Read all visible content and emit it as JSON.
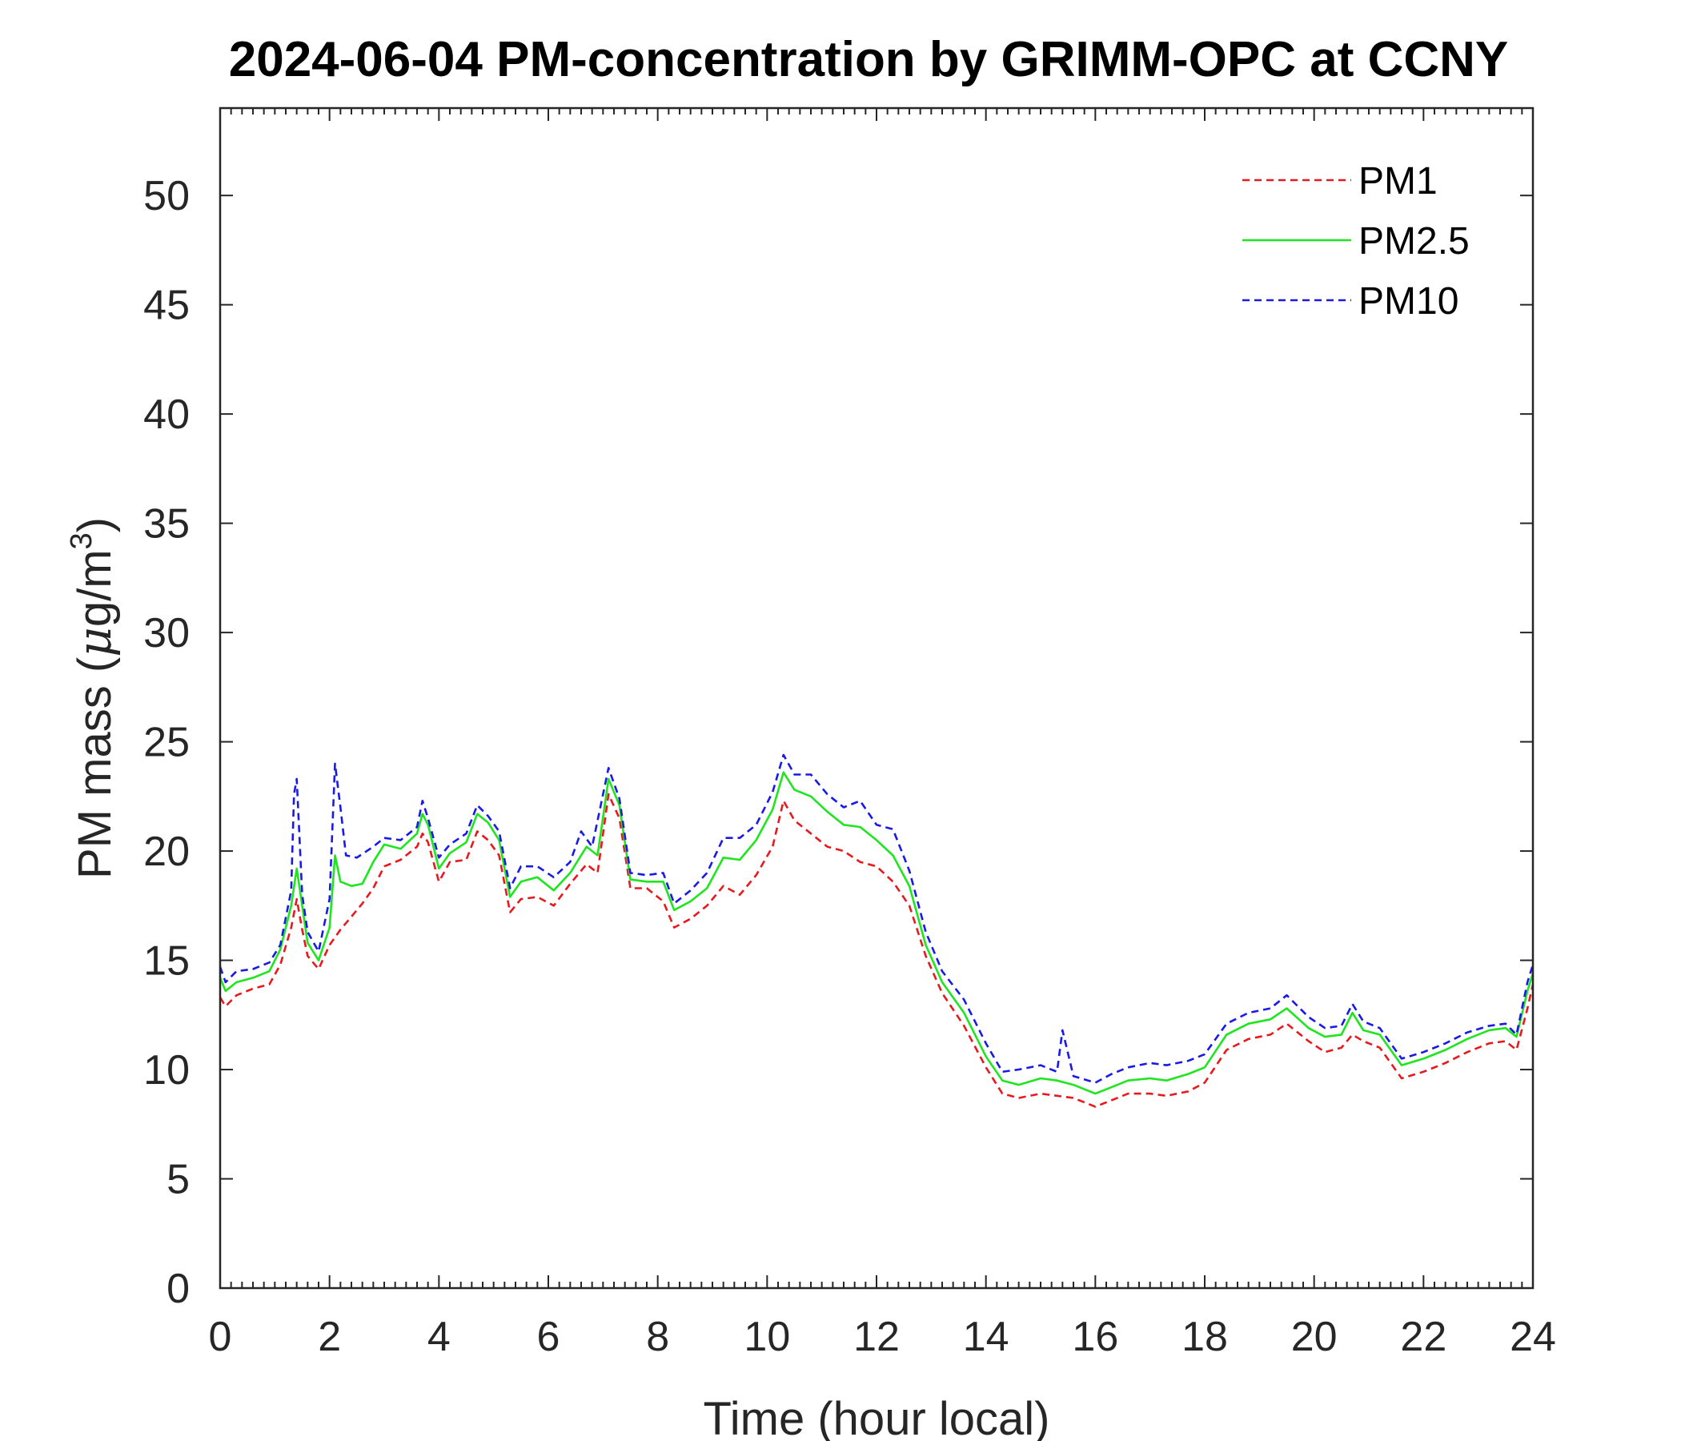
{
  "chart_data": {
    "type": "line",
    "title": "2024-06-04 PM-concentration by GRIMM-OPC at CCNY",
    "xlabel": "Time (hour local)",
    "ylabel_main": "PM mass (",
    "ylabel_mu": "μ",
    "ylabel_unit": "g/m",
    "ylabel_sup": "3",
    "ylabel_close": ")",
    "xlim": [
      0,
      24
    ],
    "ylim": [
      0,
      54
    ],
    "xticks": [
      0,
      2,
      4,
      6,
      8,
      10,
      12,
      14,
      16,
      18,
      20,
      22,
      24
    ],
    "yticks": [
      0,
      5,
      10,
      15,
      20,
      25,
      30,
      35,
      40,
      45,
      50
    ],
    "grid": false,
    "legend_position": "top-right",
    "series": [
      {
        "name": "PM1",
        "color": "#e8191e",
        "style": "dashed",
        "points": [
          [
            0,
            13.3
          ],
          [
            0.1,
            12.9
          ],
          [
            0.3,
            13.4
          ],
          [
            0.6,
            13.7
          ],
          [
            0.9,
            13.9
          ],
          [
            1.1,
            14.8
          ],
          [
            1.3,
            16.5
          ],
          [
            1.4,
            17.8
          ],
          [
            1.5,
            16.4
          ],
          [
            1.6,
            15.2
          ],
          [
            1.8,
            14.6
          ],
          [
            2.0,
            15.7
          ],
          [
            2.2,
            16.4
          ],
          [
            2.4,
            17.0
          ],
          [
            2.6,
            17.6
          ],
          [
            2.8,
            18.3
          ],
          [
            3.0,
            19.3
          ],
          [
            3.3,
            19.6
          ],
          [
            3.6,
            20.2
          ],
          [
            3.7,
            20.8
          ],
          [
            3.8,
            20.4
          ],
          [
            4.0,
            18.6
          ],
          [
            4.2,
            19.5
          ],
          [
            4.5,
            19.6
          ],
          [
            4.7,
            20.9
          ],
          [
            4.9,
            20.5
          ],
          [
            5.1,
            19.8
          ],
          [
            5.3,
            17.2
          ],
          [
            5.5,
            17.8
          ],
          [
            5.8,
            17.9
          ],
          [
            6.1,
            17.5
          ],
          [
            6.4,
            18.5
          ],
          [
            6.7,
            19.4
          ],
          [
            6.9,
            19.0
          ],
          [
            7.1,
            22.6
          ],
          [
            7.3,
            21.5
          ],
          [
            7.5,
            18.3
          ],
          [
            7.8,
            18.3
          ],
          [
            8.1,
            17.7
          ],
          [
            8.3,
            16.5
          ],
          [
            8.6,
            16.9
          ],
          [
            8.9,
            17.5
          ],
          [
            9.2,
            18.4
          ],
          [
            9.5,
            18.0
          ],
          [
            9.8,
            18.9
          ],
          [
            10.1,
            20.2
          ],
          [
            10.3,
            22.3
          ],
          [
            10.5,
            21.4
          ],
          [
            10.8,
            20.8
          ],
          [
            11.1,
            20.2
          ],
          [
            11.4,
            20.0
          ],
          [
            11.7,
            19.5
          ],
          [
            12.0,
            19.3
          ],
          [
            12.3,
            18.6
          ],
          [
            12.6,
            17.5
          ],
          [
            12.9,
            15.2
          ],
          [
            13.2,
            13.5
          ],
          [
            13.6,
            12.0
          ],
          [
            14.0,
            10.1
          ],
          [
            14.3,
            8.9
          ],
          [
            14.6,
            8.7
          ],
          [
            15.0,
            8.9
          ],
          [
            15.3,
            8.8
          ],
          [
            15.6,
            8.7
          ],
          [
            16.0,
            8.3
          ],
          [
            16.3,
            8.6
          ],
          [
            16.6,
            8.9
          ],
          [
            17.0,
            8.9
          ],
          [
            17.3,
            8.8
          ],
          [
            17.7,
            9.0
          ],
          [
            18.0,
            9.4
          ],
          [
            18.4,
            10.9
          ],
          [
            18.8,
            11.4
          ],
          [
            19.2,
            11.6
          ],
          [
            19.5,
            12.1
          ],
          [
            19.9,
            11.3
          ],
          [
            20.2,
            10.8
          ],
          [
            20.5,
            11.0
          ],
          [
            20.7,
            11.6
          ],
          [
            20.9,
            11.3
          ],
          [
            21.2,
            11.0
          ],
          [
            21.6,
            9.6
          ],
          [
            22.0,
            9.9
          ],
          [
            22.4,
            10.3
          ],
          [
            22.8,
            10.8
          ],
          [
            23.2,
            11.2
          ],
          [
            23.5,
            11.3
          ],
          [
            23.7,
            10.9
          ],
          [
            23.9,
            12.8
          ],
          [
            24.0,
            13.9
          ]
        ]
      },
      {
        "name": "PM2.5",
        "color": "#1ee61e",
        "style": "solid",
        "points": [
          [
            0,
            14.2
          ],
          [
            0.1,
            13.6
          ],
          [
            0.3,
            14.0
          ],
          [
            0.6,
            14.2
          ],
          [
            0.9,
            14.5
          ],
          [
            1.1,
            15.5
          ],
          [
            1.3,
            17.5
          ],
          [
            1.4,
            19.2
          ],
          [
            1.5,
            17.5
          ],
          [
            1.6,
            15.8
          ],
          [
            1.8,
            15.0
          ],
          [
            2.0,
            16.5
          ],
          [
            2.1,
            19.8
          ],
          [
            2.2,
            18.6
          ],
          [
            2.4,
            18.4
          ],
          [
            2.6,
            18.5
          ],
          [
            2.8,
            19.5
          ],
          [
            3.0,
            20.3
          ],
          [
            3.3,
            20.1
          ],
          [
            3.6,
            20.8
          ],
          [
            3.7,
            21.7
          ],
          [
            3.8,
            21.2
          ],
          [
            4.0,
            19.2
          ],
          [
            4.2,
            19.9
          ],
          [
            4.5,
            20.4
          ],
          [
            4.7,
            21.7
          ],
          [
            4.9,
            21.3
          ],
          [
            5.1,
            20.5
          ],
          [
            5.3,
            17.9
          ],
          [
            5.5,
            18.6
          ],
          [
            5.8,
            18.8
          ],
          [
            6.1,
            18.2
          ],
          [
            6.4,
            19.0
          ],
          [
            6.7,
            20.2
          ],
          [
            6.9,
            19.8
          ],
          [
            7.1,
            23.3
          ],
          [
            7.3,
            22.1
          ],
          [
            7.5,
            18.7
          ],
          [
            7.8,
            18.6
          ],
          [
            8.1,
            18.6
          ],
          [
            8.3,
            17.3
          ],
          [
            8.6,
            17.7
          ],
          [
            8.9,
            18.3
          ],
          [
            9.2,
            19.7
          ],
          [
            9.5,
            19.6
          ],
          [
            9.8,
            20.5
          ],
          [
            10.1,
            21.9
          ],
          [
            10.3,
            23.6
          ],
          [
            10.5,
            22.8
          ],
          [
            10.8,
            22.5
          ],
          [
            11.1,
            21.8
          ],
          [
            11.4,
            21.2
          ],
          [
            11.7,
            21.1
          ],
          [
            12.0,
            20.5
          ],
          [
            12.3,
            19.8
          ],
          [
            12.6,
            18.4
          ],
          [
            12.9,
            15.7
          ],
          [
            13.2,
            14.0
          ],
          [
            13.6,
            12.6
          ],
          [
            14.0,
            10.6
          ],
          [
            14.3,
            9.5
          ],
          [
            14.6,
            9.3
          ],
          [
            15.0,
            9.6
          ],
          [
            15.3,
            9.5
          ],
          [
            15.6,
            9.3
          ],
          [
            16.0,
            8.9
          ],
          [
            16.3,
            9.2
          ],
          [
            16.6,
            9.5
          ],
          [
            17.0,
            9.6
          ],
          [
            17.3,
            9.5
          ],
          [
            17.7,
            9.8
          ],
          [
            18.0,
            10.1
          ],
          [
            18.4,
            11.6
          ],
          [
            18.8,
            12.1
          ],
          [
            19.2,
            12.3
          ],
          [
            19.5,
            12.8
          ],
          [
            19.9,
            11.9
          ],
          [
            20.2,
            11.5
          ],
          [
            20.5,
            11.6
          ],
          [
            20.7,
            12.6
          ],
          [
            20.9,
            11.8
          ],
          [
            21.2,
            11.6
          ],
          [
            21.6,
            10.2
          ],
          [
            22.0,
            10.5
          ],
          [
            22.4,
            10.9
          ],
          [
            22.8,
            11.4
          ],
          [
            23.2,
            11.8
          ],
          [
            23.5,
            11.9
          ],
          [
            23.7,
            11.5
          ],
          [
            23.9,
            13.6
          ],
          [
            24.0,
            14.4
          ]
        ]
      },
      {
        "name": "PM10",
        "color": "#1919e8",
        "style": "dashed",
        "points": [
          [
            0,
            14.7
          ],
          [
            0.1,
            14.0
          ],
          [
            0.3,
            14.5
          ],
          [
            0.6,
            14.6
          ],
          [
            0.9,
            14.9
          ],
          [
            1.1,
            15.7
          ],
          [
            1.3,
            18.2
          ],
          [
            1.35,
            22.6
          ],
          [
            1.4,
            23.3
          ],
          [
            1.5,
            18.0
          ],
          [
            1.6,
            16.3
          ],
          [
            1.8,
            15.4
          ],
          [
            2.0,
            17.8
          ],
          [
            2.1,
            24.0
          ],
          [
            2.2,
            22.0
          ],
          [
            2.3,
            19.8
          ],
          [
            2.5,
            19.7
          ],
          [
            2.8,
            20.2
          ],
          [
            3.0,
            20.6
          ],
          [
            3.3,
            20.5
          ],
          [
            3.6,
            21.1
          ],
          [
            3.7,
            22.3
          ],
          [
            3.8,
            21.5
          ],
          [
            4.0,
            19.7
          ],
          [
            4.2,
            20.3
          ],
          [
            4.5,
            20.8
          ],
          [
            4.7,
            22.1
          ],
          [
            4.9,
            21.6
          ],
          [
            5.1,
            20.9
          ],
          [
            5.3,
            18.3
          ],
          [
            5.5,
            19.3
          ],
          [
            5.8,
            19.3
          ],
          [
            6.1,
            18.8
          ],
          [
            6.4,
            19.5
          ],
          [
            6.6,
            20.9
          ],
          [
            6.8,
            20.2
          ],
          [
            7.1,
            23.8
          ],
          [
            7.3,
            22.4
          ],
          [
            7.5,
            19.0
          ],
          [
            7.8,
            18.9
          ],
          [
            8.1,
            19.0
          ],
          [
            8.3,
            17.6
          ],
          [
            8.6,
            18.2
          ],
          [
            8.9,
            19.0
          ],
          [
            9.2,
            20.6
          ],
          [
            9.5,
            20.6
          ],
          [
            9.8,
            21.2
          ],
          [
            10.1,
            22.7
          ],
          [
            10.3,
            24.4
          ],
          [
            10.5,
            23.5
          ],
          [
            10.8,
            23.5
          ],
          [
            11.1,
            22.6
          ],
          [
            11.4,
            22.0
          ],
          [
            11.7,
            22.3
          ],
          [
            12.0,
            21.2
          ],
          [
            12.3,
            21.0
          ],
          [
            12.6,
            19.1
          ],
          [
            12.9,
            16.3
          ],
          [
            13.2,
            14.5
          ],
          [
            13.6,
            13.2
          ],
          [
            14.0,
            11.2
          ],
          [
            14.3,
            9.9
          ],
          [
            14.6,
            10.0
          ],
          [
            15.0,
            10.2
          ],
          [
            15.3,
            9.9
          ],
          [
            15.4,
            11.8
          ],
          [
            15.6,
            9.7
          ],
          [
            16.0,
            9.4
          ],
          [
            16.3,
            9.8
          ],
          [
            16.6,
            10.1
          ],
          [
            17.0,
            10.3
          ],
          [
            17.3,
            10.2
          ],
          [
            17.7,
            10.4
          ],
          [
            18.0,
            10.7
          ],
          [
            18.4,
            12.1
          ],
          [
            18.8,
            12.6
          ],
          [
            19.2,
            12.8
          ],
          [
            19.5,
            13.4
          ],
          [
            19.9,
            12.4
          ],
          [
            20.2,
            11.9
          ],
          [
            20.5,
            12.0
          ],
          [
            20.7,
            13.0
          ],
          [
            20.9,
            12.2
          ],
          [
            21.2,
            11.9
          ],
          [
            21.6,
            10.5
          ],
          [
            22.0,
            10.8
          ],
          [
            22.4,
            11.2
          ],
          [
            22.8,
            11.7
          ],
          [
            23.2,
            12.0
          ],
          [
            23.5,
            12.1
          ],
          [
            23.7,
            11.6
          ],
          [
            23.9,
            14.0
          ],
          [
            24.0,
            14.8
          ]
        ]
      }
    ]
  }
}
